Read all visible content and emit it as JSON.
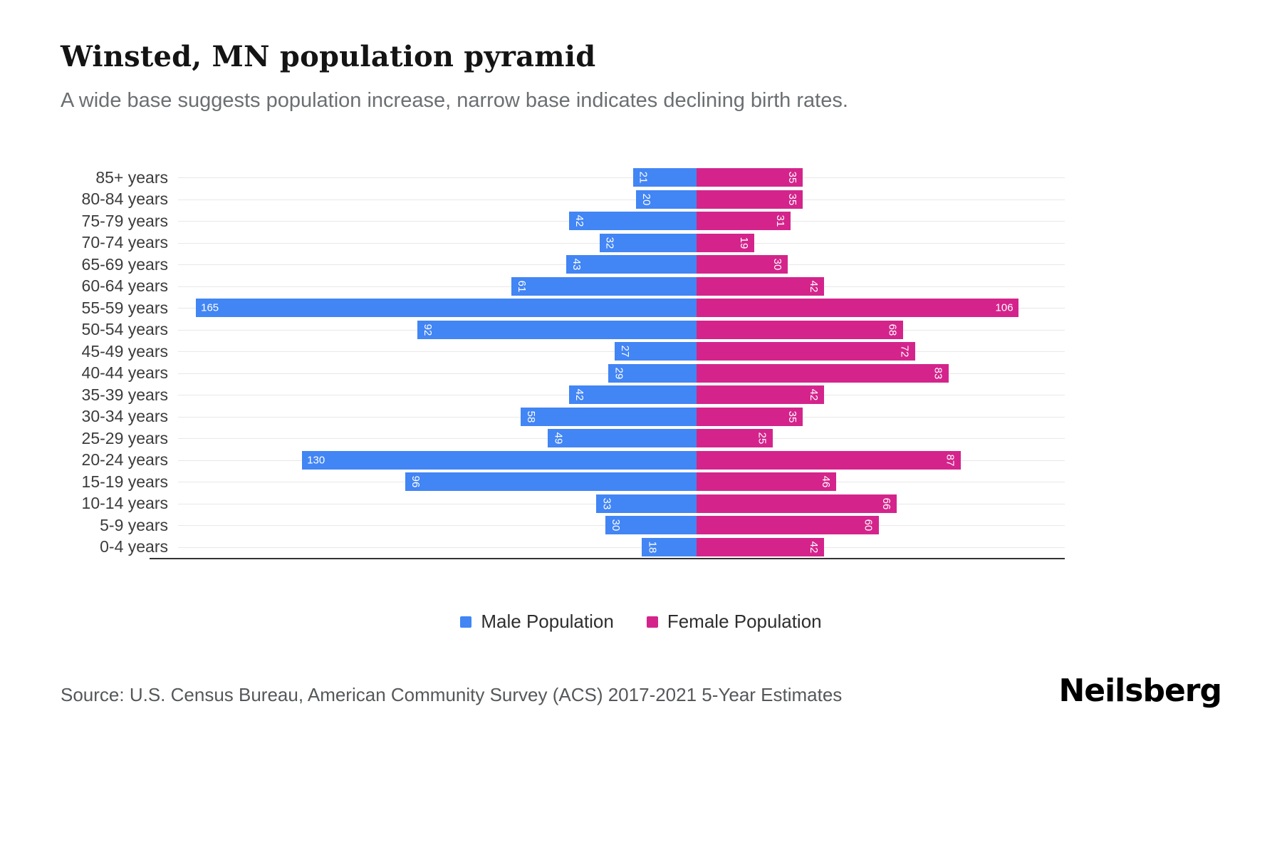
{
  "header": {
    "title": "Winsted, MN population pyramid",
    "subtitle": "A wide base suggests population increase, narrow base indicates declining birth rates."
  },
  "chart_data": {
    "type": "bar",
    "subtype": "population-pyramid",
    "title": "Winsted, MN population pyramid",
    "orientation": "horizontal",
    "legend_position": "bottom",
    "grid": true,
    "value_axis_max": 165,
    "categories": [
      "85+ years",
      "80-84 years",
      "75-79 years",
      "70-74 years",
      "65-69 years",
      "60-64 years",
      "55-59 years",
      "50-54 years",
      "45-49 years",
      "40-44 years",
      "35-39 years",
      "30-34 years",
      "25-29 years",
      "20-24 years",
      "15-19 years",
      "10-14 years",
      "5-9 years",
      "0-4 years"
    ],
    "series": [
      {
        "name": "Male Population",
        "color": "#4285F4",
        "direction": "left",
        "values": [
          21,
          20,
          42,
          32,
          43,
          61,
          165,
          92,
          27,
          29,
          42,
          58,
          49,
          130,
          96,
          33,
          30,
          18
        ]
      },
      {
        "name": "Female Population",
        "color": "#D4248C",
        "direction": "right",
        "values": [
          35,
          35,
          31,
          19,
          30,
          42,
          106,
          68,
          72,
          83,
          42,
          35,
          25,
          87,
          46,
          66,
          60,
          42
        ]
      }
    ]
  },
  "footer": {
    "source": "Source: U.S. Census Bureau, American Community Survey (ACS) 2017-2021 5-Year Estimates",
    "brand": "Neilsberg"
  }
}
